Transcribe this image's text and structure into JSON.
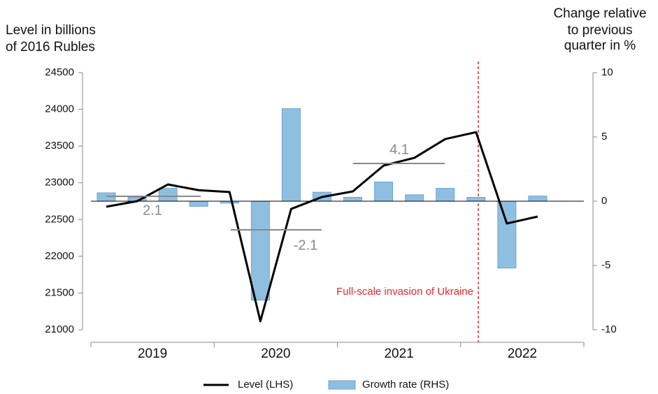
{
  "chart_data": {
    "type": "bar-line",
    "y_label": [
      "Level in billions",
      "of 2016 Rubles"
    ],
    "y2_label": [
      "Change relative",
      "to previous",
      "quarter in %"
    ],
    "categories": [
      null,
      null,
      null,
      null,
      null,
      null,
      null,
      null,
      null,
      null,
      null,
      null,
      null,
      null,
      null,
      null
    ],
    "year_labels": [
      "2019",
      "2020",
      "2021",
      "2022"
    ],
    "series": [
      {
        "name": "Level (LHS)",
        "type": "line",
        "color": "#000000",
        "axis": "y",
        "values": [
          22675,
          22750,
          22978,
          22900,
          22875,
          21115,
          22645,
          22807,
          22883,
          23235,
          23340,
          23596,
          23690,
          22446,
          22541,
          null
        ]
      },
      {
        "name": "Growth rate (RHS)",
        "type": "bar",
        "color": "#8fbfe0",
        "axis": "y2",
        "values": [
          0.65,
          0.3,
          1.0,
          -0.4,
          -0.15,
          -7.7,
          7.2,
          0.7,
          0.3,
          1.5,
          0.5,
          1.0,
          0.3,
          -5.2,
          0.4,
          null
        ]
      }
    ],
    "annotations": [
      {
        "text": "2.1",
        "level": 22817
      },
      {
        "text": "-2.1",
        "level": 22360
      },
      {
        "text": "4.1",
        "level": 23264
      }
    ],
    "event_label": "Full-scale invasion of Ukraine",
    "ylim": [
      21000,
      24500
    ],
    "yticks": [
      21000,
      21500,
      22000,
      22500,
      23000,
      23500,
      24000,
      24500
    ],
    "y2lim": [
      -10,
      10
    ],
    "y2ticks": [
      -10,
      -5,
      0,
      5,
      10
    ]
  }
}
